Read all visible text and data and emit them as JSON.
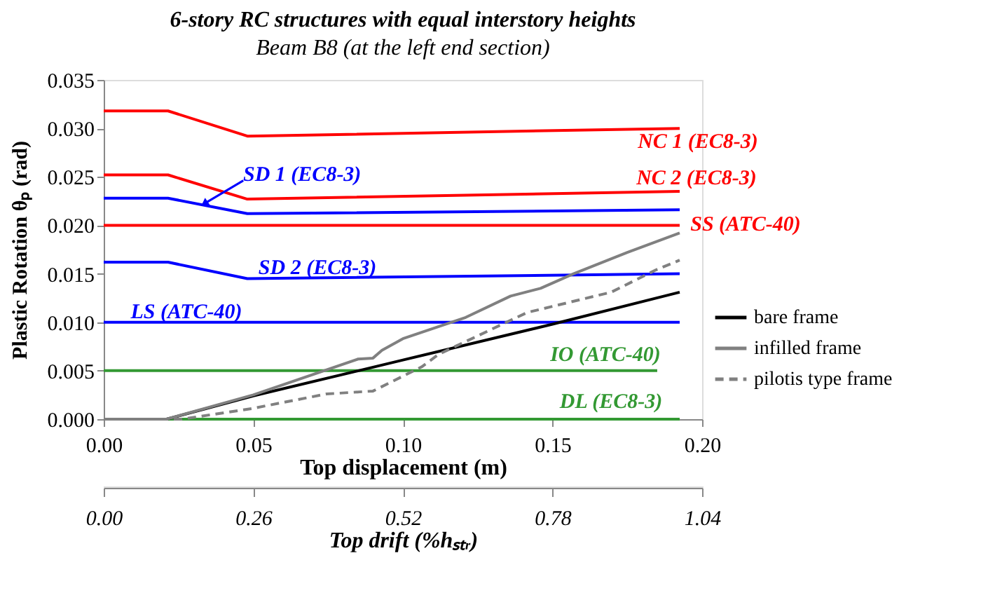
{
  "chart_data": {
    "type": "line",
    "title": "6-story RC structures with equal interstory heights",
    "subtitle": "Beam B8 (at the left end section)",
    "xlabel": "Top displacement (m)",
    "ylabel": "Plastic Rotation θₚ (rad)",
    "x2label": "Top drift (%hₛₜᵣ)",
    "xlim": [
      0,
      0.2
    ],
    "xticks": [
      {
        "value": 0,
        "label": "0.00"
      },
      0.05,
      {
        "value": 0.1,
        "label": "0.10"
      },
      0.15,
      {
        "value": 0.2,
        "label": "0.20"
      }
    ],
    "x2lim": [
      0,
      1.04
    ],
    "x2ticks": [
      {
        "value": 0,
        "label": "0.00"
      },
      0.26,
      0.52,
      0.78,
      1.04
    ],
    "ylim": [
      0,
      0.035
    ],
    "yticks": [
      {
        "value": 0,
        "label": "0.000"
      },
      0.005,
      {
        "value": 0.01,
        "label": "0.010"
      },
      0.015,
      {
        "value": 0.02,
        "label": "0.020"
      },
      0.025,
      {
        "value": 0.03,
        "label": "0.030"
      },
      0.035
    ],
    "grid": false,
    "legend": "right",
    "line_style": "solid",
    "series": [
      {
        "color": "#ff0000",
        "x": [
          0,
          0.0215,
          0.048,
          0.1925
        ],
        "values": [
          0.0318,
          0.0318,
          0.0292,
          0.03
        ]
      },
      {
        "color": "#ff0000",
        "x": [
          0,
          0.0215,
          0.048,
          0.1925
        ],
        "values": [
          0.0252,
          0.0252,
          0.0227,
          0.0235
        ]
      },
      {
        "color": "#0000ff",
        "x": [
          0,
          0.0215,
          0.048,
          0.1925
        ],
        "values": [
          0.0228,
          0.0228,
          0.0212,
          0.0216
        ]
      },
      {
        "color": "#ff0000",
        "x": [
          0,
          0.1925
        ],
        "values": [
          0.02,
          0.02
        ]
      },
      {
        "color": "#0000ff",
        "x": [
          0,
          0.0215,
          0.048,
          0.1925
        ],
        "values": [
          0.0162,
          0.0162,
          0.0145,
          0.015
        ]
      },
      {
        "color": "#0000ff",
        "x": [
          0,
          0.1925
        ],
        "values": [
          0.01,
          0.01
        ]
      },
      {
        "color": "#339933",
        "x": [
          0,
          0.185
        ],
        "values": [
          0.005,
          0.005
        ]
      },
      {
        "color": "#339933",
        "x": [
          0,
          0.1925
        ],
        "values": [
          0,
          0
        ]
      },
      {
        "name": "bare frame",
        "color": "#000000",
        "x": [
          0,
          0.021,
          0.05,
          0.1,
          0.15,
          0.1925
        ],
        "values": [
          0,
          0,
          0.0024,
          0.0061,
          0.0098,
          0.0131
        ]
      },
      {
        "name": "infilled frame",
        "color": "#808080",
        "x": [
          0,
          0.021,
          0.05,
          0.085,
          0.09,
          0.093,
          0.1,
          0.121,
          0.136,
          0.146,
          0.157,
          0.175,
          0.1925
        ],
        "values": [
          0,
          0,
          0.0025,
          0.0062,
          0.0063,
          0.0071,
          0.0083,
          0.0105,
          0.0127,
          0.0135,
          0.015,
          0.0172,
          0.0192
        ]
      },
      {
        "name": "pilotis type frame",
        "color": "#808080",
        "line_style": "dashed",
        "x": [
          0,
          0.026,
          0.0496,
          0.0745,
          0.09,
          0.1063,
          0.112,
          0.1415,
          0.1696,
          0.1846,
          0.1925
        ],
        "values": [
          0,
          0,
          0.0011,
          0.0026,
          0.0029,
          0.0054,
          0.0067,
          0.011,
          0.0131,
          0.0154,
          0.0164
        ]
      }
    ],
    "annotations": [
      "NC 1 (EC8-3)",
      "NC 2 (EC8-3)",
      {
        "text": "SD 1 (EC8-3)",
        "x": 0.034,
        "y": 0.0223
      },
      "SS (ATC-40)",
      "SD 2 (EC8-3)",
      "LS (ATC-40)",
      "IO (ATC-40)",
      "DL (EC8-3)"
    ]
  }
}
